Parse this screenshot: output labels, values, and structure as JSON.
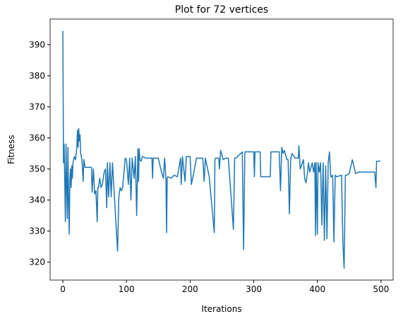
{
  "chart_data": {
    "type": "line",
    "title": "Plot for 72 vertices",
    "x_label": "Iterations",
    "y_label": "Fitness",
    "x": [
      0,
      1,
      2,
      3,
      4,
      5,
      6,
      7,
      8,
      9,
      10,
      11,
      12,
      13,
      14,
      15,
      16,
      18,
      20,
      22,
      23,
      24,
      25,
      26,
      27,
      28,
      30,
      32,
      33,
      35,
      45,
      46,
      48,
      50,
      52,
      54,
      55,
      56,
      58,
      60,
      62,
      65,
      67,
      69,
      70,
      72,
      74,
      76,
      78,
      86,
      88,
      90,
      92,
      94,
      98,
      100,
      103,
      105,
      107,
      109,
      112,
      114,
      116,
      118,
      119,
      120,
      121,
      123,
      125,
      130,
      140,
      141,
      142,
      150,
      155,
      158,
      160,
      162,
      163,
      164,
      165,
      170,
      175,
      180,
      185,
      186,
      188,
      192,
      194,
      200,
      202,
      205,
      210,
      220,
      222,
      224,
      230,
      238,
      239,
      240,
      245,
      246,
      248,
      252,
      256,
      260,
      262,
      268,
      270,
      272,
      282,
      284,
      286,
      290,
      300,
      301,
      302,
      310,
      311,
      326,
      327,
      340,
      342,
      344,
      346,
      348,
      352,
      354,
      356,
      358,
      360,
      365,
      370,
      371,
      373,
      378,
      380,
      382,
      384,
      386,
      388,
      392,
      394,
      396,
      397,
      398,
      400,
      401,
      403,
      405,
      407,
      409,
      411,
      413,
      415,
      417,
      419,
      421,
      422,
      424,
      426,
      428,
      430,
      438,
      440,
      442,
      444,
      446,
      450,
      455,
      460,
      465,
      470,
      475,
      480,
      490,
      492,
      493,
      495,
      499
    ],
    "series": [
      {
        "name": "Fitness",
        "color": "#1f77b4",
        "values": [
          394.5,
          352,
          358,
          346,
          333,
          358,
          345,
          334,
          357,
          340,
          329,
          346,
          350,
          344,
          351,
          347,
          352,
          354,
          353,
          357,
          362.5,
          357,
          363,
          359,
          361,
          355,
          353,
          346,
          353,
          350.5,
          350.5,
          342.5,
          350,
          342,
          343,
          333,
          344,
          344,
          347,
          344,
          345,
          349,
          350,
          337.5,
          352,
          341,
          352,
          341,
          352,
          323.5,
          341,
          344,
          343,
          344,
          353.5,
          353,
          345,
          353.5,
          340,
          353.5,
          347,
          354,
          335,
          356.5,
          346,
          356.5,
          353,
          352.5,
          354,
          353.5,
          353.5,
          347,
          353.5,
          353.5,
          349,
          347,
          353.5,
          347,
          329.5,
          347,
          347.5,
          347,
          348,
          347.5,
          353.5,
          345,
          354,
          346,
          354,
          354,
          345,
          348,
          353.5,
          353.5,
          346,
          353.5,
          347.5,
          329.5,
          353,
          353.5,
          353.5,
          350,
          356,
          353,
          353.5,
          353.5,
          348,
          330.5,
          353.5,
          353.5,
          355.5,
          324,
          355.5,
          355.5,
          355.5,
          347.5,
          355.5,
          355.5,
          347.5,
          347.5,
          355.5,
          355.5,
          343,
          357,
          355,
          356,
          353,
          353,
          335.5,
          353,
          355,
          353.5,
          353.5,
          357.5,
          350,
          353,
          347,
          345.5,
          348,
          352,
          349,
          352,
          349,
          352,
          328.5,
          352,
          329,
          352,
          349,
          352,
          332,
          352,
          327,
          351,
          327.5,
          352,
          355.5,
          347.5,
          347.5,
          348,
          326.5,
          348,
          347.5,
          348,
          326.5,
          318,
          348,
          348,
          348.5,
          353,
          348.5,
          349,
          349,
          349,
          349,
          349,
          344,
          352.5,
          352.5,
          352.5
        ]
      }
    ],
    "xlim": [
      -20,
      519
    ],
    "xticks": [
      0,
      100,
      200,
      300,
      400,
      500
    ],
    "ylim": [
      314.2,
      398.3
    ],
    "yticks": [
      320,
      330,
      340,
      350,
      360,
      370,
      380,
      390
    ]
  }
}
